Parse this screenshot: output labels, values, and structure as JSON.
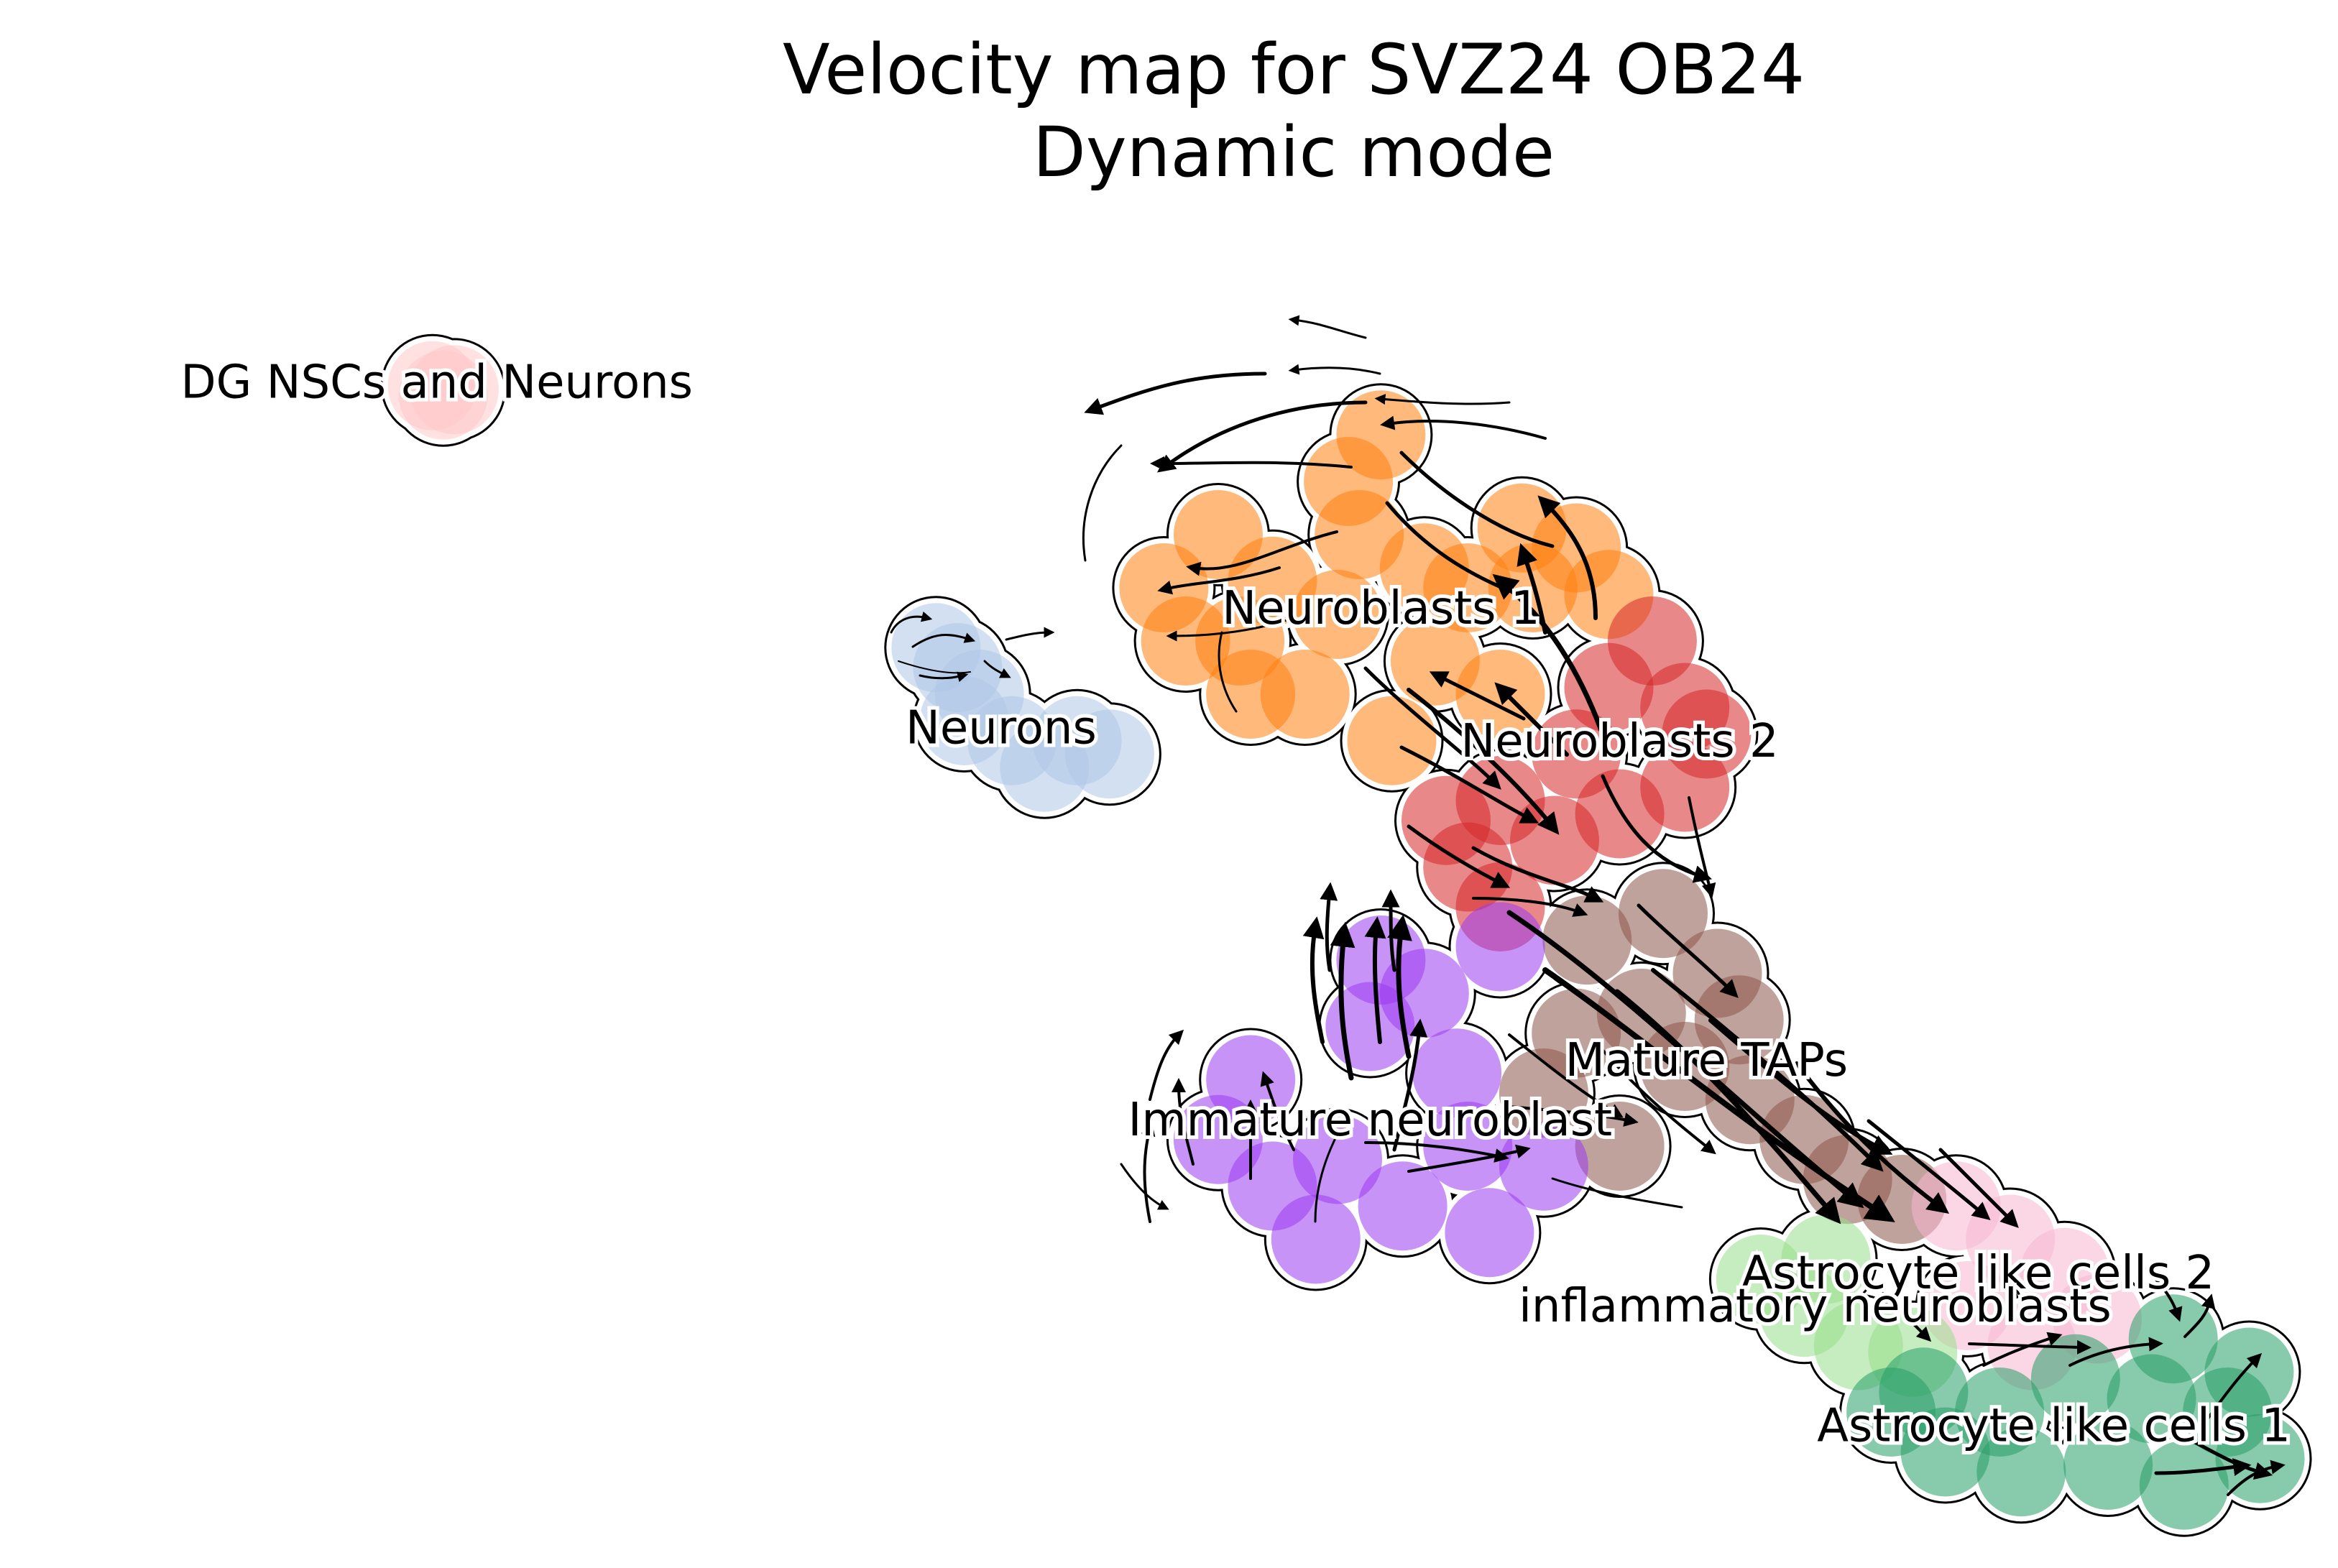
{
  "chart_data": {
    "type": "scatter",
    "title": "Velocity map for SVZ24 OB24",
    "subtitle": "Dynamic mode",
    "xlabel": "",
    "ylabel": "",
    "axes_visible": false,
    "grid": false,
    "legend": "on data",
    "xlim": [
      0,
      100
    ],
    "ylim": [
      0,
      100
    ],
    "overlay": "velocity streamlines with arrows",
    "clusters": [
      {
        "name": "DG NSCs and Neurons",
        "color": "#ffc9c9",
        "label": {
          "x": 13.5,
          "y": 87.5
        },
        "points": [
          [
            13.8,
            86.5
          ],
          [
            13.3,
            87.2
          ],
          [
            14.3,
            86.9
          ]
        ]
      },
      {
        "name": "Neurons",
        "color": "#aec7e8",
        "label": {
          "x": 39.5,
          "y": 61.5
        },
        "points": [
          [
            37.5,
            66.0
          ],
          [
            38.5,
            64.0
          ],
          [
            37.8,
            62.0
          ],
          [
            40.0,
            60.5
          ],
          [
            41.5,
            58.5
          ],
          [
            43.0,
            60.5
          ],
          [
            44.5,
            59.5
          ],
          [
            36.5,
            67.5
          ]
        ]
      },
      {
        "name": "Neuroblasts 1",
        "color": "#ff7f0e",
        "label": {
          "x": 57.0,
          "y": 70.5
        },
        "points": [
          [
            55.5,
            80.0
          ],
          [
            49.5,
            76.0
          ],
          [
            47.0,
            72.0
          ],
          [
            50.5,
            68.0
          ],
          [
            53.5,
            64.0
          ],
          [
            57.5,
            60.5
          ],
          [
            59.5,
            66.5
          ],
          [
            61.0,
            72.0
          ],
          [
            63.5,
            76.5
          ],
          [
            66.0,
            75.0
          ],
          [
            56.0,
            76.0
          ],
          [
            52.0,
            72.5
          ],
          [
            55.0,
            70.0
          ],
          [
            59.0,
            73.5
          ],
          [
            64.0,
            72.0
          ],
          [
            57.0,
            83.5
          ],
          [
            51.0,
            64.0
          ],
          [
            62.5,
            64.0
          ],
          [
            48.0,
            68.0
          ],
          [
            67.5,
            71.5
          ]
        ]
      },
      {
        "name": "Neuroblasts 2",
        "color": "#d62728",
        "label": {
          "x": 68.0,
          "y": 60.5
        },
        "points": [
          [
            67.5,
            64.5
          ],
          [
            69.5,
            68.0
          ],
          [
            71.0,
            63.0
          ],
          [
            66.0,
            59.5
          ],
          [
            62.5,
            56.0
          ],
          [
            65.0,
            53.0
          ],
          [
            68.0,
            55.0
          ],
          [
            71.0,
            57.0
          ],
          [
            72.0,
            61.0
          ],
          [
            61.0,
            51.0
          ],
          [
            62.5,
            48.0
          ],
          [
            60.0,
            54.5
          ]
        ]
      },
      {
        "name": "Mature TAPs",
        "color": "#8c564b",
        "label": {
          "x": 72.0,
          "y": 36.5
        },
        "points": [
          [
            66.5,
            45.5
          ],
          [
            70.0,
            47.5
          ],
          [
            72.5,
            43.0
          ],
          [
            69.0,
            40.0
          ],
          [
            66.0,
            38.5
          ],
          [
            71.0,
            36.0
          ],
          [
            74.0,
            33.5
          ],
          [
            76.5,
            30.5
          ],
          [
            78.5,
            27.5
          ],
          [
            81.0,
            26.0
          ],
          [
            68.0,
            30.0
          ],
          [
            64.5,
            34.0
          ],
          [
            73.5,
            39.5
          ]
        ]
      },
      {
        "name": "Immature neuroblast",
        "color": "#9b3af0",
        "label": {
          "x": 56.5,
          "y": 32.0
        },
        "points": [
          [
            51.0,
            35.0
          ],
          [
            49.5,
            30.5
          ],
          [
            52.0,
            27.0
          ],
          [
            55.0,
            29.0
          ],
          [
            58.0,
            25.5
          ],
          [
            61.0,
            30.0
          ],
          [
            64.5,
            28.5
          ],
          [
            60.5,
            35.5
          ],
          [
            56.5,
            39.0
          ],
          [
            59.0,
            41.5
          ],
          [
            57.0,
            44.0
          ],
          [
            62.5,
            45.0
          ],
          [
            54.0,
            23.0
          ],
          [
            62.0,
            23.5
          ]
        ]
      },
      {
        "name": "Astrocyte like cells 2",
        "color": "#f7b6d2",
        "label": {
          "x": 84.5,
          "y": 20.5
        },
        "points": [
          [
            83.5,
            25.5
          ],
          [
            86.0,
            23.0
          ],
          [
            88.5,
            20.5
          ],
          [
            90.0,
            17.0
          ],
          [
            87.0,
            15.0
          ],
          [
            84.0,
            18.0
          ]
        ]
      },
      {
        "name": "inflammatory neuroblasts",
        "color": "#98df8a",
        "label": {
          "x": 77.0,
          "y": 18.0
        },
        "points": [
          [
            74.5,
            20.0
          ],
          [
            76.5,
            17.5
          ],
          [
            79.0,
            15.0
          ],
          [
            81.5,
            14.5
          ],
          [
            77.5,
            21.5
          ]
        ]
      },
      {
        "name": "Astrocyte like cells 1",
        "color": "#279e68",
        "label": {
          "x": 88.0,
          "y": 9.0
        },
        "points": [
          [
            82.0,
            11.5
          ],
          [
            85.5,
            10.0
          ],
          [
            89.0,
            12.5
          ],
          [
            92.5,
            11.0
          ],
          [
            96.0,
            10.0
          ],
          [
            97.5,
            6.5
          ],
          [
            94.0,
            4.5
          ],
          [
            90.5,
            6.0
          ],
          [
            86.5,
            5.5
          ],
          [
            83.0,
            7.0
          ],
          [
            80.5,
            10.0
          ],
          [
            93.5,
            15.5
          ],
          [
            97.0,
            13.0
          ]
        ]
      }
    ]
  }
}
